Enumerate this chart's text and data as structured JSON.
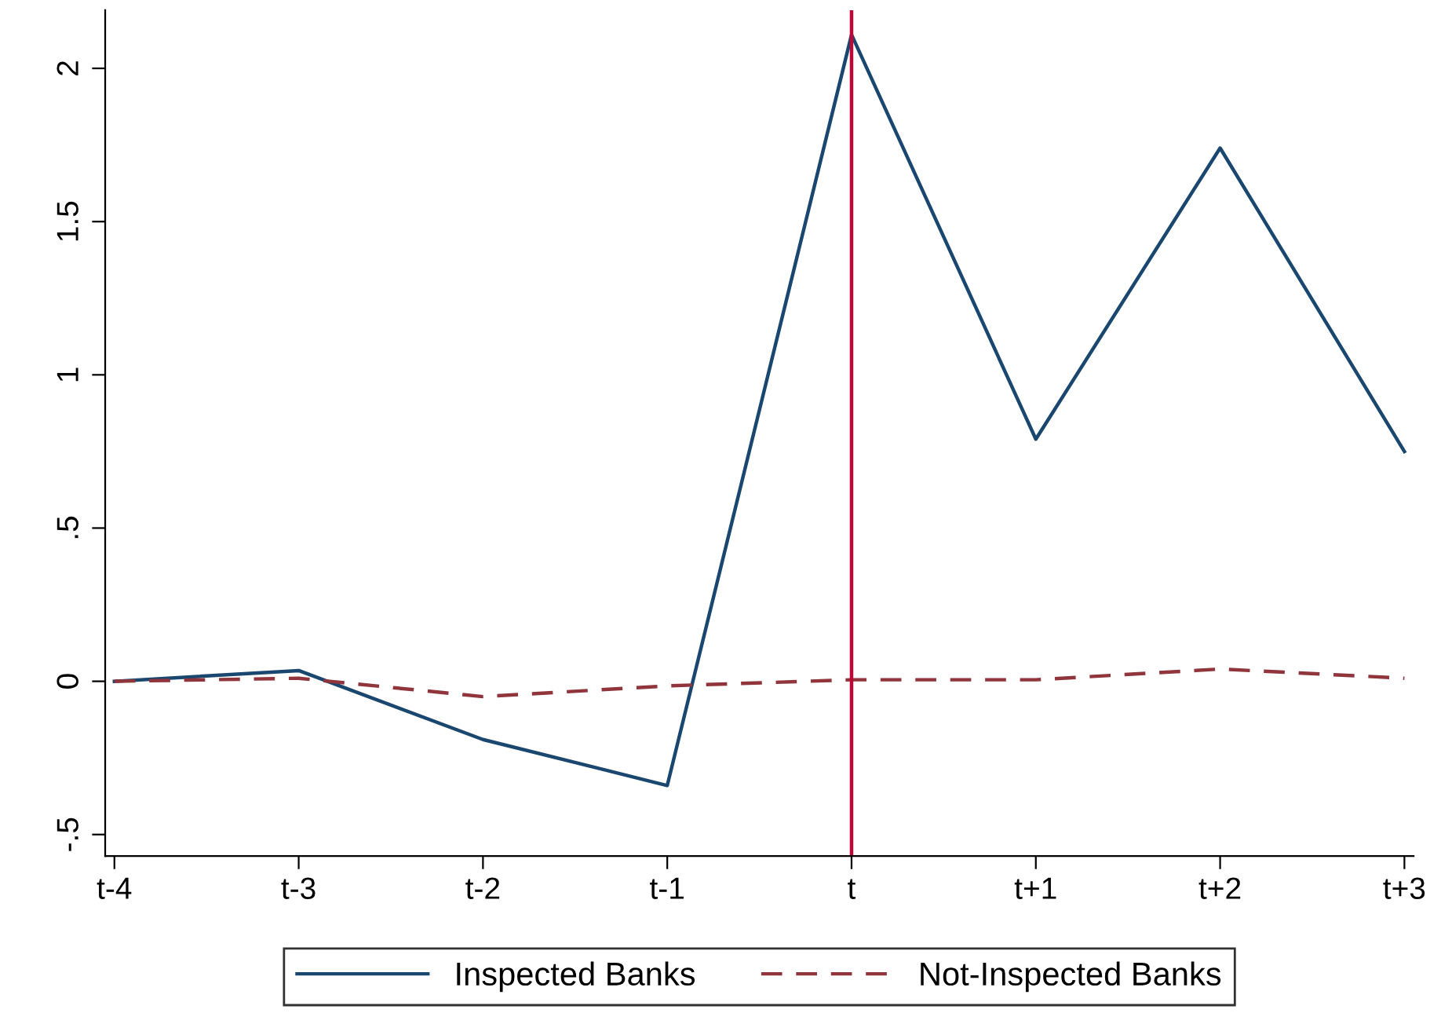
{
  "chart_data": {
    "type": "line",
    "categories": [
      "t-4",
      "t-3",
      "t-2",
      "t-1",
      "t",
      "t+1",
      "t+2",
      "t+3"
    ],
    "series": [
      {
        "name": "Inspected Banks",
        "color": "#1a476f",
        "line_style": "solid",
        "values": [
          0,
          0.035,
          -0.19,
          -0.34,
          2.11,
          0.79,
          1.74,
          0.75
        ]
      },
      {
        "name": "Not-Inspected Banks",
        "color": "#90353b",
        "line_style": "dashed",
        "values": [
          0,
          0.01,
          -0.05,
          -0.015,
          0.005,
          0.005,
          0.04,
          0.01
        ]
      }
    ],
    "ylim": [
      -0.57,
      2.19
    ],
    "yticks": [
      {
        "value": -0.5,
        "label": "-.5"
      },
      0,
      {
        "value": 0.5,
        "label": ".5"
      },
      1,
      1.5,
      2
    ],
    "ref_lines": [
      {
        "axis": "x",
        "value": "t",
        "color": "#c10534"
      }
    ],
    "grid": false,
    "legend": "bottom",
    "marker": "none"
  }
}
